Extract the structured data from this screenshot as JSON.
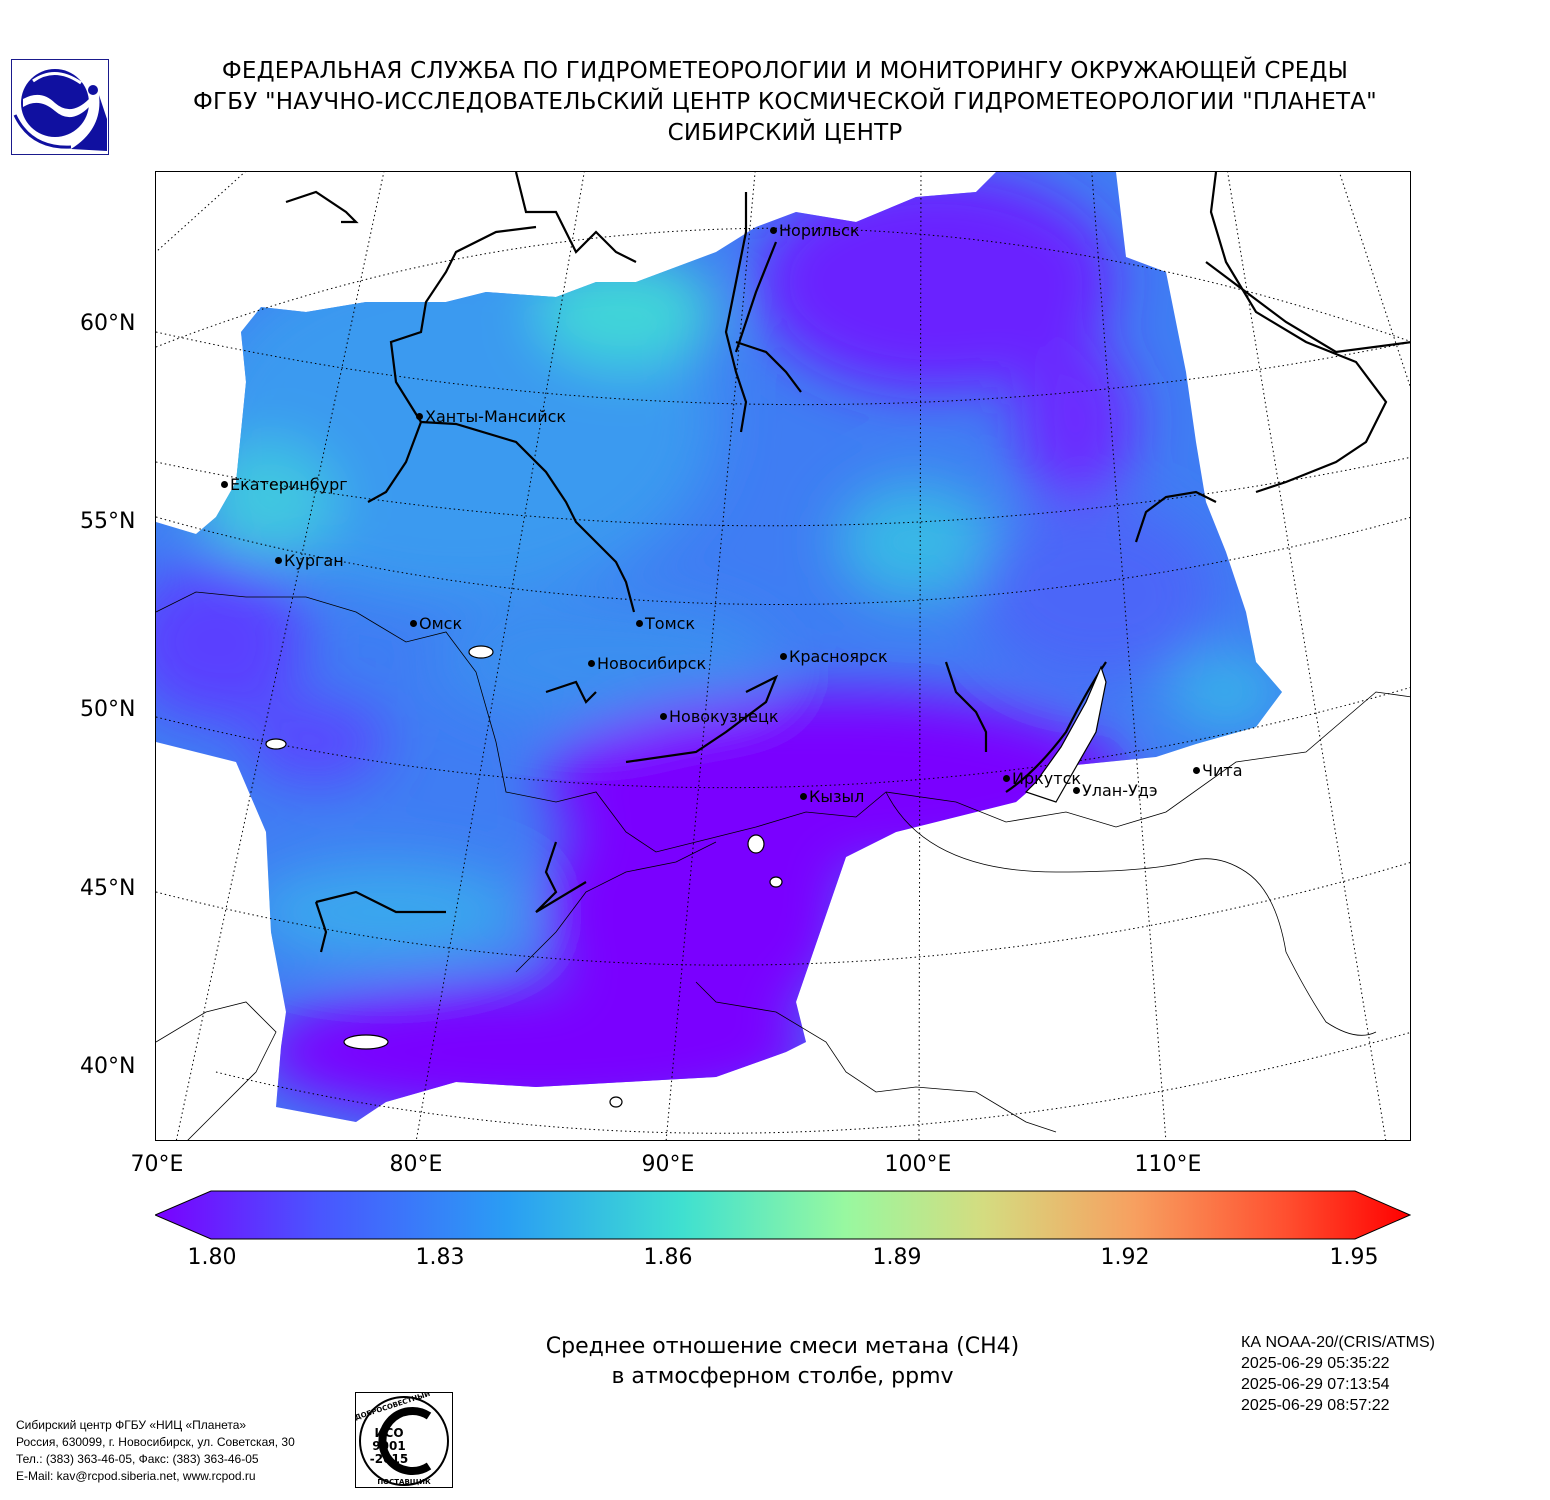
{
  "header": {
    "line1": "ФЕДЕРАЛЬНАЯ СЛУЖБА ПО ГИДРОМЕТЕОРОЛОГИИ И МОНИТОРИНГУ ОКРУЖАЮЩЕЙ СРЕДЫ",
    "line2": "ФГБУ \"НАУЧНО-ИССЛЕДОВАТЕЛЬСКИЙ ЦЕНТР КОСМИЧЕСКОЙ ГИДРОМЕТЕОРОЛОГИИ \"ПЛАНЕТА\"",
    "line3": "СИБИРСКИЙ ЦЕНТР"
  },
  "map": {
    "lat_labels": [
      "60°N",
      "55°N",
      "50°N",
      "45°N",
      "40°N"
    ],
    "lon_labels": [
      "70°E",
      "80°E",
      "90°E",
      "100°E",
      "110°E"
    ],
    "cities": [
      {
        "name": "Норильск"
      },
      {
        "name": "Ханты-Мансийск"
      },
      {
        "name": "Екатеринбург"
      },
      {
        "name": "Курган"
      },
      {
        "name": "Омск"
      },
      {
        "name": "Томск"
      },
      {
        "name": "Новосибирск"
      },
      {
        "name": "Красноярск"
      },
      {
        "name": "Новокузнецк"
      },
      {
        "name": "Иркутск"
      },
      {
        "name": "Улан-Удэ"
      },
      {
        "name": "Чита"
      },
      {
        "name": "Кызыл"
      }
    ],
    "colors": {
      "low": "#7a00ff",
      "mid": "#2a9df4",
      "high_swath": "#3fe0d0",
      "max": "#ff0000"
    }
  },
  "colorbar": {
    "min": 1.8,
    "max": 1.95,
    "ticks": [
      "1.80",
      "1.83",
      "1.86",
      "1.89",
      "1.92",
      "1.95"
    ],
    "stops": [
      "#7a00ff",
      "#4a55ff",
      "#2a9df4",
      "#3fe0d0",
      "#98f8a0",
      "#d4dc80",
      "#f7a060",
      "#ff5030",
      "#ff0000"
    ]
  },
  "caption": {
    "line1": "Среднее отношение смеси метана (CH4)",
    "line2": "в атмосферном столбе, ppmv"
  },
  "satellite": {
    "name": "КА NOAA-20/(CRIS/ATMS)",
    "times": [
      "2025-06-29 05:35:22",
      "2025-06-29 07:13:54",
      "2025-06-29 08:57:22"
    ]
  },
  "contacts": {
    "line1": "Сибирский центр ФГБУ «НИЦ «Планета»",
    "line2": "Россия, 630099, г. Новосибирск, ул. Советская, 30",
    "line3": "Тел.: (383) 363-46-05, Факс: (383) 363-46-05",
    "line4": "E-Mail: kav@rcpod.siberia.net, www.rcpod.ru"
  },
  "iso_badge": {
    "arc_top": "ДОБРОСОВЕСТНЫЙ",
    "line1": "ИСО",
    "line2": "9001",
    "line3": "-2015",
    "arc_bottom": "ПОСТАВЩИК"
  }
}
